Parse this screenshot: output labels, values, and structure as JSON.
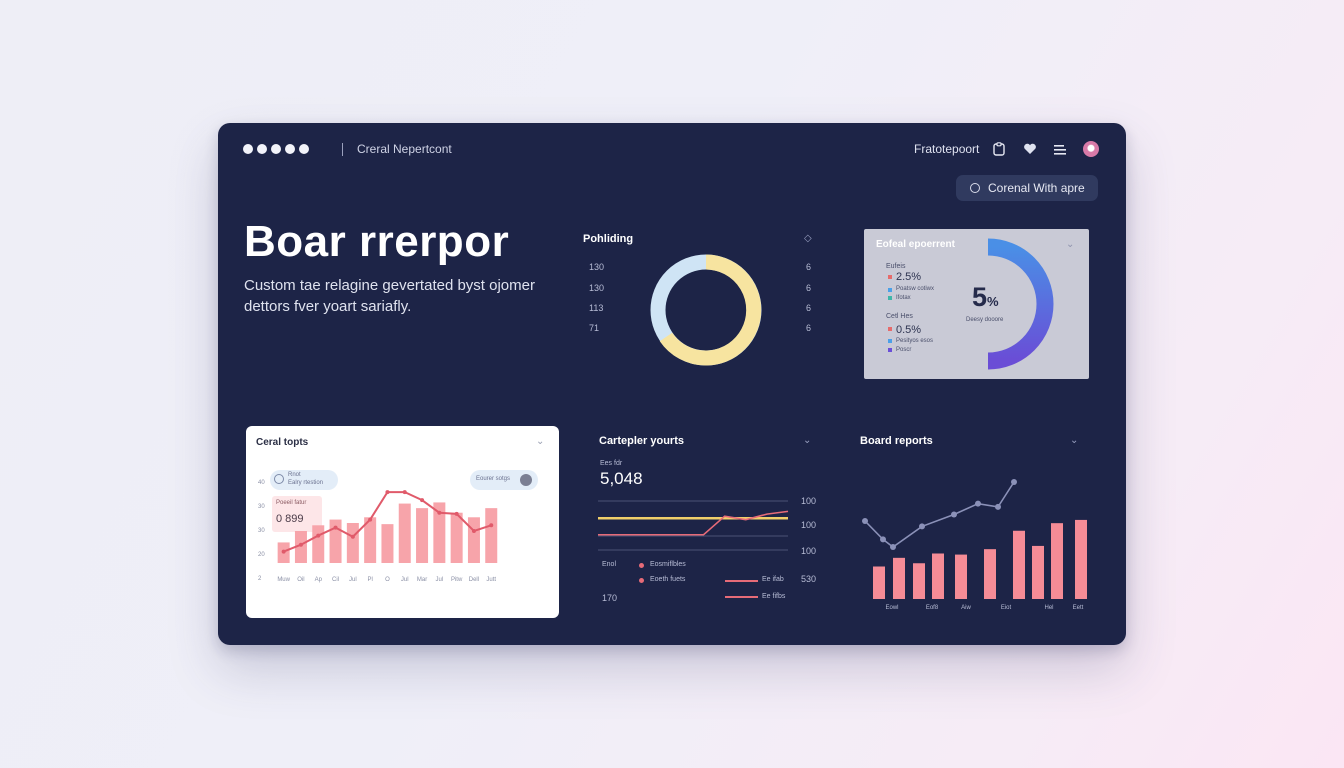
{
  "header": {
    "title": "Creral Nepertcont",
    "right_label": "Fratotepoort",
    "icons": [
      "clipboard-icon",
      "heart-icon",
      "menu-icon",
      "avatar"
    ],
    "action_button": "Corenal With apre"
  },
  "hero": {
    "title": "Boar rrerpor",
    "subtitle": "Custom tae relagine gevertated byst ojomer dettors fver yoart sariafly."
  },
  "donut_panel": {
    "title": "Pohliding",
    "left_ticks": [
      "130",
      "130",
      "113",
      "71"
    ],
    "right_ticks": [
      "6",
      "6",
      "6",
      "6"
    ],
    "colors": {
      "a": "#f7e4a0",
      "b": "#cfe4f5"
    }
  },
  "gauge_card": {
    "title": "Eofeal epoerrent",
    "group1_label": "Eufeis",
    "group1_value": "2.5%",
    "group1_rows": [
      "Poatsw cotiwx",
      "Ifotax"
    ],
    "group2_label": "Cetl Hes",
    "group2_value": "0.5%",
    "group2_rows": [
      "Pesityos esos",
      "Poscr"
    ],
    "center_value": "5",
    "center_suffix": "%",
    "center_caption": "Deesy dooore",
    "gauge_fraction": 0.5
  },
  "coral_card": {
    "title": "Ceral topts",
    "legend_left_1": "Rnot",
    "legend_left_2": "Ealry rtestion",
    "legend_right": "Eourer sotgs",
    "callout_label": "Poeeil fatur",
    "callout_value": "0 899",
    "y_ticks": [
      "40",
      "30",
      "30",
      "20",
      "2"
    ],
    "x_ticks": [
      "Muw",
      "Oil",
      "Ap",
      "Cil",
      "Jul",
      "Pl",
      "O",
      "Jul",
      "Mar",
      "Jul",
      "Pitw",
      "Dell",
      "Jutt"
    ],
    "chart_data": {
      "type": "bar",
      "bars": [
        18,
        28,
        33,
        38,
        35,
        40,
        34,
        52,
        48,
        53,
        44,
        40,
        48
      ],
      "line": [
        10,
        16,
        24,
        31,
        23,
        38,
        62,
        62,
        55,
        44,
        43,
        28,
        33
      ],
      "ylim": [
        0,
        70
      ],
      "bar_color": "#f7a4aa",
      "line_color": "#e05a6a"
    }
  },
  "line_panel": {
    "title": "Cartepler yourts",
    "small_label": "Ees fdr",
    "big_value": "5,048",
    "right_ticks": [
      "100",
      "100",
      "100",
      "530"
    ],
    "legend_title": "Enol",
    "legend_1": "Eosmiflbles",
    "legend_2": "Eoeth fuets",
    "footer_left": "170",
    "series_1_label": "Ee ifab",
    "series_2_label": "Ee fifbs",
    "chart_data": {
      "type": "line",
      "series": [
        {
          "values": [
            52,
            52,
            52,
            52,
            52,
            52,
            52,
            52,
            52,
            52
          ]
        },
        {
          "values": [
            28,
            28,
            28,
            28,
            28,
            28,
            55,
            50,
            58,
            62
          ]
        }
      ],
      "ylim": [
        0,
        80
      ],
      "colors": [
        "#f0cf6a",
        "#e66b78"
      ]
    }
  },
  "board_panel": {
    "title": "Board reports",
    "x_ticks": [
      "Eowl",
      "Eof8",
      "Aiw",
      "Eiot",
      "Hel",
      "Eett"
    ],
    "chart_data": {
      "type": "bar",
      "bars": [
        30,
        38,
        33,
        42,
        41,
        46,
        63,
        49,
        70,
        73
      ],
      "line": [
        72,
        55,
        48,
        67,
        78,
        88,
        85,
        108
      ],
      "ylim": [
        0,
        120
      ],
      "bar_color": "#f58c96",
      "line_color": "#8b91b8"
    }
  }
}
